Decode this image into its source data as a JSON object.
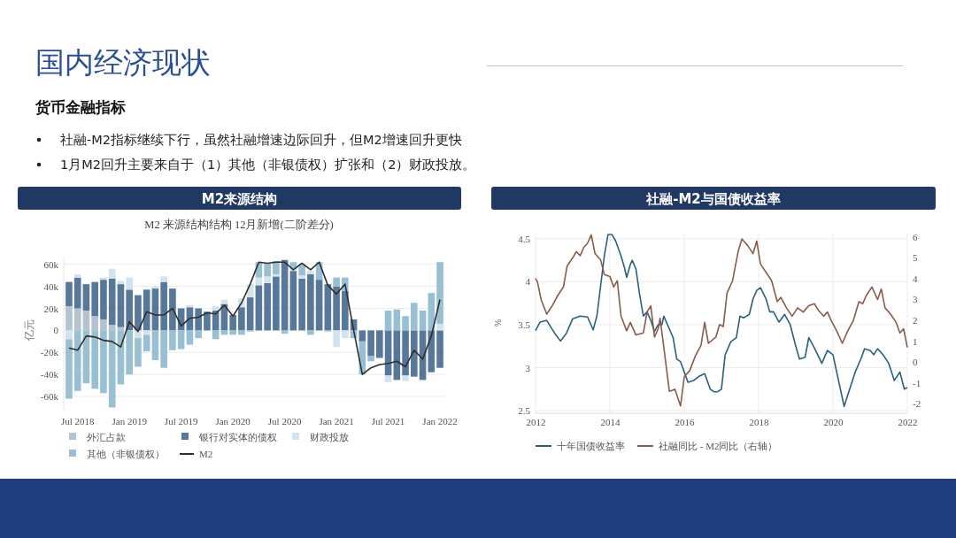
{
  "chart_data": [
    {
      "type": "bar",
      "title": "M2来源结构",
      "subtitle": "M2 来源结构结构 12月新增(二阶差分)",
      "annotations": [
        "国内经济现状",
        "货币金融指标",
        "社融-M2指标继续下行，虽然社融增速边际回升，但M2增速回升更快",
        "1月M2回升主要来自于（1）其他（非银债权）扩张和（2）财政投放。"
      ],
      "ylabel": "亿元",
      "stacked": true,
      "grid": "y",
      "legend": "bottom",
      "categories": [
        null,
        "Jul 2018",
        null,
        null,
        null,
        null,
        null,
        "Jan 2019",
        null,
        null,
        null,
        null,
        null,
        "Jul 2019",
        null,
        null,
        null,
        null,
        null,
        "Jan 2020",
        null,
        null,
        null,
        null,
        null,
        "Jul 2020",
        null,
        null,
        null,
        null,
        null,
        "Jan 2021",
        null,
        null,
        null,
        null,
        null,
        "Jul 2021",
        null,
        null,
        null,
        null,
        null,
        "Jan 2022"
      ],
      "ylim": [
        -72000,
        67000
      ],
      "yticks": [
        {
          "value": -60000,
          "label": "-60k"
        },
        {
          "value": -40000,
          "label": "-40k"
        },
        {
          "value": -20000,
          "label": "-20k"
        },
        0,
        {
          "value": 20000,
          "label": "20k"
        },
        {
          "value": 40000,
          "label": "40k"
        },
        {
          "value": 60000,
          "label": "60k"
        }
      ],
      "series": [
        {
          "name": "外汇占款",
          "color": "#b4c3cf",
          "values": [
            22000,
            20000,
            18000,
            13000,
            10000,
            5000,
            3000,
            null,
            null,
            null,
            null,
            null,
            null,
            null,
            null,
            null,
            null,
            null,
            null,
            null,
            null,
            null,
            null,
            null,
            null,
            null,
            null,
            null,
            null,
            null,
            null,
            null,
            null,
            null,
            null,
            null,
            null,
            null,
            null,
            null,
            null,
            null,
            null,
            null
          ]
        },
        {
          "name": "银行对实体的债权",
          "color": "#57789a",
          "values": [
            22000,
            28000,
            24000,
            31000,
            36000,
            42000,
            39000,
            37000,
            32000,
            37000,
            38000,
            44000,
            38000,
            20000,
            21000,
            20000,
            17000,
            18000,
            24000,
            14000,
            21000,
            30000,
            41000,
            43000,
            49000,
            64000,
            54000,
            47000,
            51000,
            46000,
            42000,
            40000,
            36000,
            10000,
            -10000,
            -23000,
            -25000,
            -41000,
            -45000,
            -41000,
            -42000,
            -45000,
            -38000,
            -34000
          ]
        },
        {
          "name": "财政投放",
          "color": "#d3e3ec",
          "values": [
            -8000,
            3000,
            null,
            null,
            2000,
            9000,
            3000,
            11000,
            -7000,
            -4000,
            2000,
            5000,
            null,
            null,
            2000,
            null,
            null,
            4000,
            4000,
            null,
            8000,
            12000,
            7000,
            6000,
            2000,
            null,
            2000,
            3000,
            3000,
            null,
            null,
            -15000,
            -7000,
            null,
            null,
            null,
            null,
            -6000,
            null,
            -5000,
            null,
            null,
            null,
            6000
          ]
        },
        {
          "name": "其他（非银债权）",
          "color": "#98c0d2",
          "values": [
            -54000,
            -55000,
            -48000,
            -53000,
            -57000,
            -70000,
            -49000,
            -40000,
            -26000,
            -15000,
            -27000,
            -34000,
            -18000,
            -17000,
            -13000,
            -7000,
            null,
            -8000,
            -4000,
            -4000,
            -4000,
            -1000,
            14000,
            12000,
            12000,
            -3000,
            6000,
            10000,
            -4000,
            16000,
            -1000,
            8000,
            12000,
            -7000,
            -30000,
            -5000,
            null,
            18000,
            19000,
            13000,
            25000,
            18000,
            34000,
            56000
          ]
        },
        {
          "name": "M2",
          "type": "line",
          "color": "#2e2e2e",
          "values": [
            -16000,
            -18000,
            -5000,
            -6000,
            -9000,
            -10000,
            -15000,
            8000,
            -1000,
            17000,
            14000,
            14000,
            20000,
            4000,
            11000,
            12000,
            16000,
            15000,
            23000,
            13000,
            25000,
            42000,
            62000,
            61000,
            62000,
            62000,
            55000,
            61000,
            55000,
            62000,
            41000,
            33000,
            42000,
            0,
            -40000,
            -34000,
            -31000,
            -30000,
            -28000,
            -33000,
            -18000,
            -26000,
            -5000,
            28000
          ]
        }
      ]
    },
    {
      "type": "line",
      "title": "社融-M2与国债收益率",
      "ylabel": "%",
      "grid": true,
      "legend": "bottom",
      "xlim": [
        2012,
        2022
      ],
      "xticks": [
        2012,
        2014,
        2016,
        2018,
        2020,
        2022
      ],
      "ylim": [
        2.47,
        4.57
      ],
      "yticks": [
        2.5,
        3,
        3.5,
        4,
        4.5
      ],
      "y2lim": [
        -2.45,
        6.2
      ],
      "y2ticks": [
        -2,
        -1,
        0,
        1,
        2,
        3,
        4,
        5,
        6
      ],
      "series": [
        {
          "name": "十年国债收益率",
          "color": "#2a5f7f",
          "x": [
            2012.0,
            2012.12,
            2012.3,
            2012.5,
            2012.67,
            2012.83,
            2013.0,
            2013.2,
            2013.4,
            2013.55,
            2013.65,
            2013.75,
            2013.85,
            2013.95,
            2014.05,
            2014.15,
            2014.3,
            2014.4,
            2014.45,
            2014.55,
            2014.6,
            2014.7,
            2014.8,
            2014.9,
            2015.0,
            2015.1,
            2015.2,
            2015.3,
            2015.4,
            2015.45,
            2015.55,
            2015.7,
            2015.8,
            2015.9,
            2016.0,
            2016.1,
            2016.25,
            2016.4,
            2016.55,
            2016.7,
            2016.8,
            2016.9,
            2017.0,
            2017.1,
            2017.25,
            2017.4,
            2017.5,
            2017.6,
            2017.75,
            2017.85,
            2017.95,
            2018.05,
            2018.2,
            2018.3,
            2018.4,
            2018.55,
            2018.7,
            2018.85,
            2019.0,
            2019.1,
            2019.25,
            2019.35,
            2019.5,
            2019.7,
            2019.85,
            2020.0,
            2020.15,
            2020.3,
            2020.45,
            2020.6,
            2020.75,
            2020.85,
            2021.0,
            2021.1,
            2021.2,
            2021.35,
            2021.5,
            2021.65,
            2021.8,
            2021.92,
            2022.0
          ],
          "values": [
            3.43,
            3.53,
            3.55,
            3.41,
            3.31,
            3.4,
            3.57,
            3.6,
            3.59,
            3.44,
            3.6,
            3.95,
            4.3,
            4.55,
            4.55,
            4.48,
            4.3,
            4.15,
            4.05,
            4.2,
            4.25,
            4.15,
            3.85,
            3.6,
            3.65,
            3.55,
            3.42,
            3.5,
            3.5,
            3.6,
            3.5,
            3.35,
            3.1,
            3.07,
            2.95,
            2.83,
            2.85,
            2.9,
            2.93,
            2.75,
            2.72,
            2.72,
            2.75,
            3.15,
            3.3,
            3.35,
            3.6,
            3.58,
            3.62,
            3.8,
            3.9,
            3.93,
            3.8,
            3.65,
            3.65,
            3.53,
            3.62,
            3.5,
            3.25,
            3.1,
            3.12,
            3.35,
            3.23,
            3.05,
            3.2,
            3.15,
            2.85,
            2.55,
            2.75,
            2.95,
            3.1,
            3.22,
            3.2,
            3.15,
            3.22,
            3.15,
            3.05,
            2.85,
            2.95,
            2.75,
            2.77
          ]
        },
        {
          "name": "社融同比 - M2同比（右轴）",
          "color": "#8b5a4a",
          "axis": "y2",
          "x": [
            2012.0,
            2012.05,
            2012.15,
            2012.3,
            2012.45,
            2012.6,
            2012.75,
            2012.85,
            2013.0,
            2013.1,
            2013.2,
            2013.3,
            2013.4,
            2013.5,
            2013.6,
            2013.75,
            2013.85,
            2014.0,
            2014.1,
            2014.2,
            2014.3,
            2014.45,
            2014.55,
            2014.7,
            2014.9,
            2015.0,
            2015.1,
            2015.2,
            2015.3,
            2015.35,
            2015.5,
            2015.6,
            2015.75,
            2015.9,
            2016.0,
            2016.15,
            2016.3,
            2016.45,
            2016.55,
            2016.65,
            2016.85,
            2016.95,
            2017.05,
            2017.15,
            2017.3,
            2017.45,
            2017.55,
            2017.7,
            2017.85,
            2017.95,
            2018.05,
            2018.2,
            2018.35,
            2018.5,
            2018.6,
            2018.75,
            2018.9,
            2019.05,
            2019.2,
            2019.35,
            2019.5,
            2019.6,
            2019.75,
            2019.85,
            2019.95,
            2020.1,
            2020.25,
            2020.4,
            2020.55,
            2020.7,
            2020.8,
            2020.9,
            2021.05,
            2021.2,
            2021.3,
            2021.4,
            2021.55,
            2021.7,
            2021.8,
            2021.9,
            2022.0
          ],
          "values": [
            4.0,
            3.85,
            3.0,
            2.3,
            2.7,
            3.2,
            3.6,
            4.6,
            5.0,
            5.3,
            5.1,
            5.5,
            5.7,
            6.1,
            5.2,
            4.9,
            4.2,
            4.1,
            3.6,
            3.9,
            2.2,
            1.5,
            1.9,
            1.3,
            1.4,
            2.4,
            2.7,
            1.2,
            1.6,
            2.1,
            0.0,
            -1.4,
            -1.3,
            -2.1,
            -0.7,
            -0.4,
            0.3,
            0.8,
            1.9,
            0.9,
            1.2,
            1.8,
            1.7,
            3.3,
            3.9,
            5.3,
            5.9,
            5.6,
            5.2,
            5.8,
            4.7,
            4.3,
            3.9,
            2.9,
            3.1,
            2.6,
            2.2,
            2.6,
            2.4,
            2.7,
            2.8,
            2.5,
            2.2,
            2.4,
            2.0,
            1.5,
            0.9,
            1.5,
            2.0,
            2.9,
            2.8,
            3.2,
            3.6,
            3.0,
            3.5,
            2.6,
            2.3,
            1.9,
            1.4,
            1.6,
            0.7
          ]
        }
      ]
    }
  ]
}
